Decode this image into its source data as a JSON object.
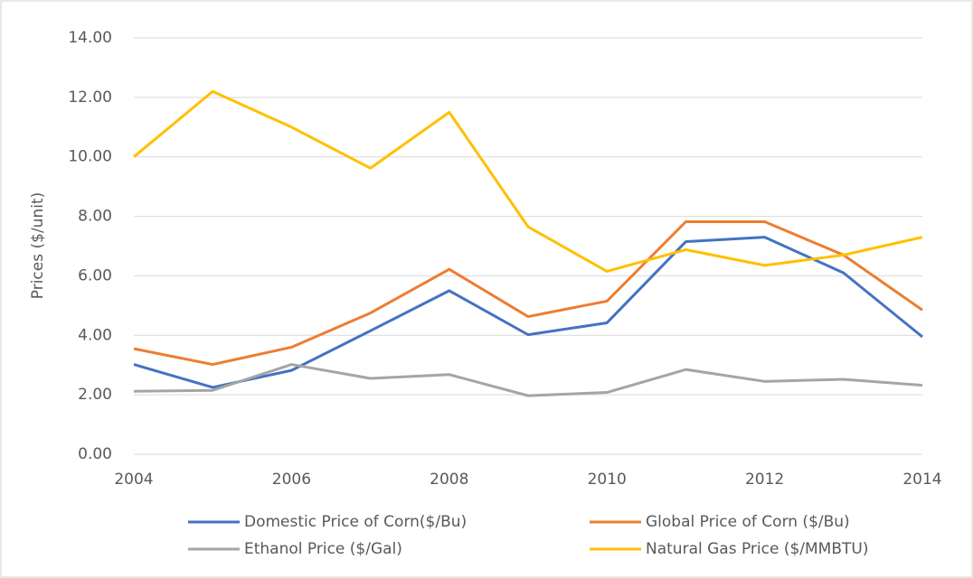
{
  "chart_data": {
    "type": "line",
    "y_label": "Prices ($/unit)",
    "x": [
      2004,
      2005,
      2006,
      2007,
      2008,
      2009,
      2010,
      2011,
      2012,
      2013,
      2014
    ],
    "xlim": [
      2004,
      2014
    ],
    "xticks": [
      2004,
      2006,
      2008,
      2010,
      2012,
      2014
    ],
    "ylim": [
      0,
      14
    ],
    "yticks": [
      {
        "value": 0,
        "label": "0.00"
      },
      {
        "value": 2,
        "label": "2.00"
      },
      {
        "value": 4,
        "label": "4.00"
      },
      {
        "value": 6,
        "label": "6.00"
      },
      {
        "value": 8,
        "label": "8.00"
      },
      {
        "value": 10,
        "label": "10.00"
      },
      {
        "value": 12,
        "label": "12.00"
      },
      {
        "value": 14,
        "label": "14.00"
      }
    ],
    "grid": true,
    "legend": "bottom",
    "series": [
      {
        "name": "Domestic Price of Corn($/Bu)",
        "color": "#4472c4",
        "values": [
          3.02,
          2.25,
          2.82,
          4.15,
          5.5,
          4.02,
          4.42,
          7.15,
          7.3,
          6.1,
          3.95
        ]
      },
      {
        "name": "Global Price of Corn ($/Bu)",
        "color": "#ed7d31",
        "values": [
          3.55,
          3.02,
          3.6,
          4.75,
          6.22,
          4.63,
          5.15,
          7.82,
          7.82,
          6.7,
          4.85
        ]
      },
      {
        "name": "Ethanol Price ($/Gal)",
        "color": "#a5a5a5",
        "values": [
          2.12,
          2.15,
          3.02,
          2.55,
          2.68,
          1.97,
          2.08,
          2.85,
          2.45,
          2.52,
          2.32
        ]
      },
      {
        "name": "Natural Gas Price ($/MMBTU)",
        "color": "#ffc000",
        "values": [
          10.0,
          12.2,
          11.0,
          9.62,
          11.5,
          7.65,
          6.15,
          6.88,
          6.35,
          6.7,
          7.3
        ]
      }
    ]
  }
}
